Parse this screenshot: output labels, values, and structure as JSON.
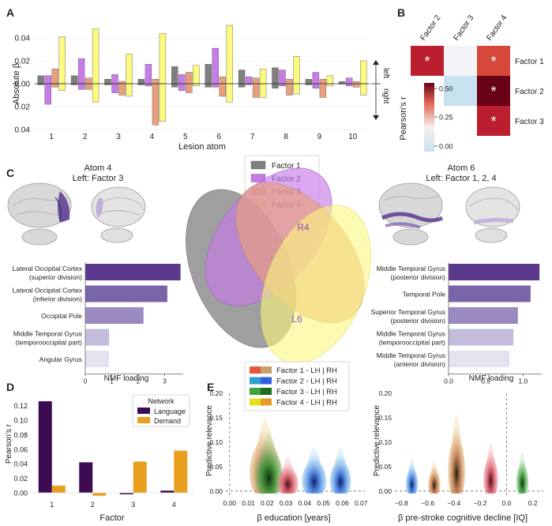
{
  "panel_letters": {
    "a": "A",
    "b": "B",
    "c": "C",
    "d": "D",
    "e": "E"
  },
  "colors": {
    "factor1": "#7f7f7f",
    "factor2": "#c77be6",
    "factor3": "#e8a07c",
    "factor4": "#fbf97e",
    "language": "#3d0b52",
    "demand": "#e8a01e",
    "purple_dark": "#5b3a8e",
    "purple_light": "#e6e2f0",
    "corr_high": "#bb1e2e",
    "corr_mid": "#d6483a",
    "corr_top": "#6a0015",
    "corr_low": "#c8e2ef",
    "corr_neutral": "#f2f4f7"
  },
  "chart_data": [
    {
      "type": "bar",
      "panel": "A",
      "ylabel": "Absolute β",
      "xlabel": "Lesion atom",
      "categories": [
        "1",
        "2",
        "3",
        "4",
        "5",
        "6",
        "7",
        "8",
        "9",
        "10"
      ],
      "ytick_labels": [
        "0.04",
        "0.02",
        "0.00",
        "0.02",
        "0.04"
      ],
      "side_labels": {
        "up": "left",
        "down": "right"
      },
      "ylim": [
        -0.04,
        0.06
      ],
      "series": [
        {
          "name": "Factor 1",
          "left": [
            0.007,
            0.007,
            0.004,
            0.004,
            0.015,
            0.017,
            0.012,
            0.014,
            0.004,
            0.002
          ],
          "right": [
            -0.001,
            -0.001,
            -0.001,
            -0.001,
            -0.003,
            -0.003,
            -0.003,
            -0.004,
            -0.001,
            0.0
          ]
        },
        {
          "name": "Factor 2",
          "left": [
            0.007,
            0.022,
            0.008,
            0.017,
            0.008,
            0.031,
            0.006,
            0.012,
            0.01,
            0.005
          ],
          "right": [
            -0.018,
            -0.005,
            -0.008,
            -0.002,
            -0.006,
            -0.003,
            -0.001,
            -0.002,
            -0.004,
            -0.002
          ]
        },
        {
          "name": "Factor 3",
          "left": [
            0.013,
            0.005,
            0.002,
            0.004,
            0.01,
            0.006,
            0.005,
            0.004,
            0.004,
            0.002
          ],
          "right": [
            -0.003,
            -0.005,
            -0.01,
            -0.036,
            -0.008,
            -0.011,
            -0.012,
            -0.01,
            -0.012,
            -0.003
          ]
        },
        {
          "name": "Factor 4",
          "left": [
            0.041,
            0.048,
            0.026,
            0.044,
            0.016,
            0.051,
            0.013,
            0.024,
            0.007,
            0.02
          ],
          "right": [
            -0.006,
            -0.016,
            -0.011,
            -0.033,
            -0.002,
            -0.016,
            -0.012,
            -0.009,
            -0.002,
            -0.01
          ]
        }
      ]
    },
    {
      "type": "heatmap",
      "panel": "B",
      "col_labels": [
        "Factor 2",
        "Factor 3",
        "Factor 4"
      ],
      "row_labels": [
        "Factor 1",
        "Factor 2",
        "Factor 3"
      ],
      "values": [
        [
          0.62,
          0.0,
          0.48
        ],
        [
          null,
          0.1,
          0.76
        ],
        [
          null,
          null,
          0.63
        ]
      ],
      "significant": [
        [
          true,
          false,
          true
        ],
        [
          false,
          false,
          true
        ],
        [
          false,
          false,
          true
        ]
      ],
      "colorbar_label": "Pearson's r",
      "colorbar_ticks": [
        "0.50",
        "0.25",
        "0.00"
      ],
      "star": "*"
    },
    {
      "type": "bar",
      "panel": "C-left",
      "orientation": "horizontal",
      "title": "Atom 4",
      "subtitle": "Left: Factor 3",
      "xlabel": "NMF loading",
      "xticks": [
        "0",
        "1",
        "2",
        "3"
      ],
      "categories": [
        "Lateral Occipital Cortex\n(superior division)",
        "Lateral Occipital Cortex\n(inferior division)",
        "Occipital Pole",
        "Middle Temporal Gyrus\n(temporooccipital part)",
        "Angular Gyrus"
      ],
      "values": [
        3.6,
        3.1,
        2.2,
        0.9,
        0.9
      ],
      "xlim": [
        0,
        3.7
      ]
    },
    {
      "type": "bar",
      "panel": "C-right",
      "orientation": "horizontal",
      "title": "Atom 6",
      "subtitle": "Left: Factor 1, 2, 4",
      "xlabel": "NMF loading",
      "xticks": [
        "0.0",
        "0.5",
        "1.0"
      ],
      "categories": [
        "Middle Temporal Gyrus\n(posterior division)",
        "Temporal Pole",
        "Superior Temporal Gyrus\n(posterior division)",
        "Middle Temporal Gyrus\n(temporooccipital part)",
        "Middle Temporal Gyrus\n(anterior division)"
      ],
      "values": [
        1.22,
        1.1,
        0.93,
        0.87,
        0.82
      ],
      "xlim": [
        0,
        1.25
      ]
    },
    {
      "type": "bar",
      "panel": "D",
      "ylabel": "Pearson's r",
      "xlabel": "Factor",
      "categories": [
        "1",
        "2",
        "3",
        "4"
      ],
      "yticks": [
        "0.12",
        "0.10",
        "0.08",
        "0.06",
        "0.04",
        "0.02",
        "0.00"
      ],
      "ylim": [
        -0.005,
        0.13
      ],
      "legend_title": "Network",
      "series": [
        {
          "name": "Language",
          "values": [
            0.126,
            0.042,
            -0.002,
            0.003
          ]
        },
        {
          "name": "Demand",
          "values": [
            0.01,
            -0.004,
            0.043,
            0.058
          ]
        }
      ]
    },
    {
      "type": "scatter",
      "panel": "E-left",
      "xlabel": "β education [years]",
      "ylabel": "Predictive relevance",
      "xticks": [
        "0.00",
        "0.01",
        "0.02",
        "0.03",
        "0.04",
        "0.05",
        "0.06",
        "0.07"
      ],
      "yticks": [
        "0.20",
        "0.15",
        "0.10",
        "0.05",
        "0.00"
      ],
      "xlim": [
        -0.002,
        0.072
      ],
      "ylim": [
        -0.01,
        0.2
      ],
      "blobs": [
        {
          "factor": "Factor 4",
          "x": 0.019,
          "x_spread": 0.009,
          "y_peak": 0.148
        },
        {
          "factor": "Factor 3",
          "x": 0.021,
          "x_spread": 0.008,
          "y_peak": 0.12
        },
        {
          "factor": "Factor 1",
          "x": 0.031,
          "x_spread": 0.006,
          "y_peak": 0.07
        },
        {
          "factor": "Factor 2",
          "x": 0.045,
          "x_spread": 0.007,
          "y_peak": 0.09
        },
        {
          "factor": "Factor 2",
          "x": 0.059,
          "x_spread": 0.006,
          "y_peak": 0.089
        }
      ]
    },
    {
      "type": "scatter",
      "panel": "E-right",
      "xlabel": "β pre-stroke cognitive decline [IQ]",
      "ylabel": "Predictive relevance",
      "xticks": [
        "−0.8",
        "−0.6",
        "−0.4",
        "−0.2",
        "0.0",
        "0.2"
      ],
      "yticks": [
        "0.20",
        "0.15",
        "0.10",
        "0.05",
        "0.00"
      ],
      "xlim": [
        -0.85,
        0.28
      ],
      "ylim": [
        -0.01,
        0.2
      ],
      "blobs": [
        {
          "factor": "Factor 2",
          "x": -0.72,
          "x_spread": 0.05,
          "y_peak": 0.068
        },
        {
          "factor": "Factor 4",
          "x": -0.55,
          "x_spread": 0.05,
          "y_peak": 0.063
        },
        {
          "factor": "Factor 4",
          "x": -0.38,
          "x_spread": 0.07,
          "y_peak": 0.158
        },
        {
          "factor": "Factor 1",
          "x": -0.12,
          "x_spread": 0.06,
          "y_peak": 0.1
        },
        {
          "factor": "Factor 3",
          "x": 0.12,
          "x_spread": 0.05,
          "y_peak": 0.08
        }
      ]
    }
  ],
  "venn": {
    "legend": [
      "Factor 1",
      "Factor 2",
      "Factor 3",
      "Factor 4"
    ],
    "labels": [
      "R4",
      "L6"
    ]
  },
  "e_legend": [
    "Factor 1 - LH | RH",
    "Factor 2 - LH | RH",
    "Factor 3 - LH | RH",
    "Factor 4 - LH | RH"
  ],
  "e_swatch_colors": [
    [
      "#e7553a",
      "#c9a06a"
    ],
    [
      "#2f9fd1",
      "#2f5fe0"
    ],
    [
      "#3aa43a",
      "#1e6d1e"
    ],
    [
      "#e4e01a",
      "#e69a2a"
    ]
  ]
}
